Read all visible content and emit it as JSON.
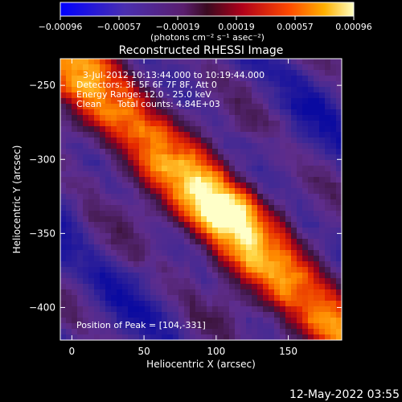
{
  "chart_data": {
    "type": "heatmap",
    "title": "Reconstructed RHESSI Image",
    "xlabel": "Heliocentric X (arcsec)",
    "ylabel": "Heliocentric Y (arcsec)",
    "x_ticks": [
      "0",
      "50",
      "100",
      "150"
    ],
    "y_ticks": [
      "−250",
      "−300",
      "−350",
      "−400"
    ],
    "xlim": [
      -8,
      187
    ],
    "ylim": [
      -422,
      -232
    ],
    "colorbar": {
      "ticks": [
        "−0.00096",
        "−0.00057",
        "−0.00019",
        "0.00019",
        "0.00057",
        "0.00096"
      ],
      "range": [
        -0.00096,
        0.00096
      ],
      "unit_label": "(photons cm⁻² s⁻¹ asec⁻²)"
    },
    "annotations": {
      "time": "3-Jul-2012 10:13:44.000 to 10:19:44.000",
      "detectors": "Detectors: 3F 5F 6F 7F 8F, Att 0",
      "energy": "Energy Range: 12.0 - 25.0 keV",
      "clean": "Clean",
      "counts": "Total counts: 4.84E+03",
      "peak": "Position of Peak = [104,-331]"
    },
    "peak": [
      104,
      -331
    ],
    "footer_date": "12-May-2022 03:55"
  },
  "colors": {
    "background": "#000000",
    "foreground": "#ffffff"
  }
}
